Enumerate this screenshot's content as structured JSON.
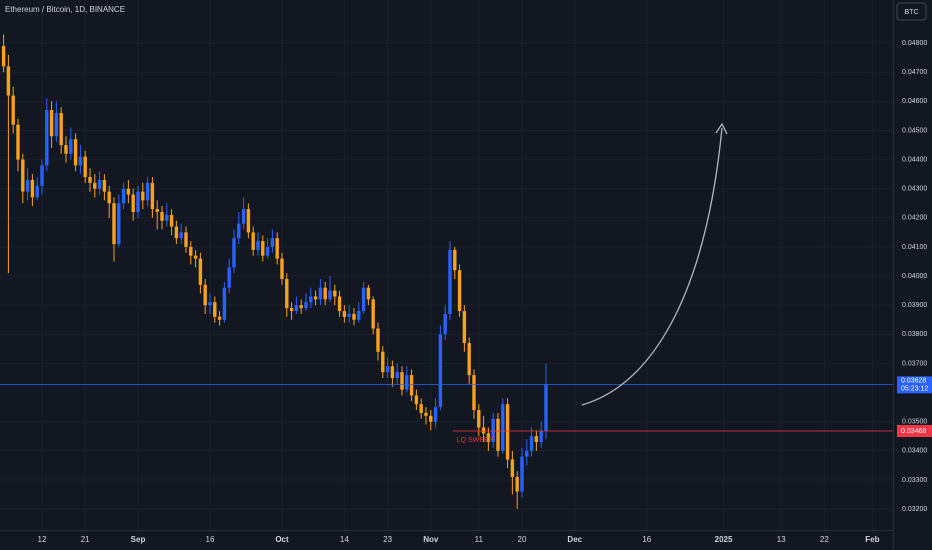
{
  "chart_data": {
    "type": "candlestick",
    "title": "Ethereum / Bitcoin, 1D, BINANCE",
    "currency_button": "BTC",
    "up_color": "#2962ff",
    "down_color": "#f7a21b",
    "ylim": [
      0.03128,
      0.04948
    ],
    "yticks": [
      {
        "value": 0.032,
        "label": "0.03200"
      },
      {
        "value": 0.033,
        "label": "0.03300"
      },
      {
        "value": 0.034,
        "label": "0.03400"
      },
      {
        "value": 0.035,
        "label": "0.03500"
      },
      {
        "value": 0.037,
        "label": "0.03700"
      },
      {
        "value": 0.038,
        "label": "0.03800"
      },
      {
        "value": 0.039,
        "label": "0.03900"
      },
      {
        "value": 0.04,
        "label": "0.04000"
      },
      {
        "value": 0.041,
        "label": "0.04100"
      },
      {
        "value": 0.042,
        "label": "0.04200"
      },
      {
        "value": 0.043,
        "label": "0.04300"
      },
      {
        "value": 0.044,
        "label": "0.04400"
      },
      {
        "value": 0.045,
        "label": "0.04500"
      },
      {
        "value": 0.046,
        "label": "0.04600"
      },
      {
        "value": 0.047,
        "label": "0.04700"
      },
      {
        "value": 0.048,
        "label": "0.04800"
      }
    ],
    "xlim": [
      -0.75,
      185.3
    ],
    "xticks": [
      {
        "value": 8,
        "label": "12"
      },
      {
        "value": 17,
        "label": "21"
      },
      {
        "value": 28,
        "label": "Sep"
      },
      {
        "value": 43,
        "label": "16"
      },
      {
        "value": 58,
        "label": "Oct"
      },
      {
        "value": 71,
        "label": "14"
      },
      {
        "value": 80,
        "label": "23"
      },
      {
        "value": 89,
        "label": "Nov"
      },
      {
        "value": 99,
        "label": "11"
      },
      {
        "value": 108,
        "label": "20"
      },
      {
        "value": 119,
        "label": "Dec"
      },
      {
        "value": 134,
        "label": "16"
      },
      {
        "value": 150,
        "label": "2025"
      },
      {
        "value": 162,
        "label": "13"
      },
      {
        "value": 171,
        "label": "22"
      },
      {
        "value": 181,
        "label": "Feb"
      }
    ],
    "last_price": 0.03628,
    "countdown": "05:23:12",
    "level_price": 0.03468,
    "annotation": "LQ SWEEP",
    "ohlc": [
      [
        0.0479,
        0.0483,
        0.047,
        0.0472
      ],
      [
        0.0472,
        0.0476,
        0.0401,
        0.0462
      ],
      [
        0.0462,
        0.0465,
        0.0449,
        0.0452
      ],
      [
        0.0452,
        0.0454,
        0.0436,
        0.044
      ],
      [
        0.044,
        0.0442,
        0.0425,
        0.0429
      ],
      [
        0.0429,
        0.0437,
        0.0426,
        0.0433
      ],
      [
        0.0433,
        0.0435,
        0.0424,
        0.0427
      ],
      [
        0.0427,
        0.0434,
        0.0426,
        0.0431
      ],
      [
        0.0431,
        0.044,
        0.0428,
        0.0438
      ],
      [
        0.0438,
        0.0461,
        0.0436,
        0.0457
      ],
      [
        0.0457,
        0.046,
        0.0444,
        0.0448
      ],
      [
        0.0448,
        0.046,
        0.0446,
        0.0456
      ],
      [
        0.0456,
        0.0458,
        0.0442,
        0.0445
      ],
      [
        0.0445,
        0.0448,
        0.0439,
        0.0442
      ],
      [
        0.0442,
        0.0451,
        0.044,
        0.0447
      ],
      [
        0.0447,
        0.0449,
        0.0436,
        0.0438
      ],
      [
        0.0438,
        0.0445,
        0.0435,
        0.0441
      ],
      [
        0.0441,
        0.0443,
        0.0432,
        0.0434
      ],
      [
        0.0434,
        0.0437,
        0.0429,
        0.0432
      ],
      [
        0.0432,
        0.0435,
        0.0427,
        0.043
      ],
      [
        0.043,
        0.0436,
        0.0428,
        0.0433
      ],
      [
        0.0433,
        0.0435,
        0.0426,
        0.0429
      ],
      [
        0.0429,
        0.0431,
        0.042,
        0.0425
      ],
      [
        0.0425,
        0.0427,
        0.0405,
        0.0411
      ],
      [
        0.0411,
        0.0428,
        0.041,
        0.0425
      ],
      [
        0.0425,
        0.0432,
        0.0423,
        0.043
      ],
      [
        0.043,
        0.0433,
        0.0425,
        0.0428
      ],
      [
        0.0428,
        0.043,
        0.0419,
        0.0422
      ],
      [
        0.0422,
        0.0431,
        0.042,
        0.0429
      ],
      [
        0.0429,
        0.0432,
        0.0423,
        0.0426
      ],
      [
        0.0426,
        0.0434,
        0.0424,
        0.0432
      ],
      [
        0.0432,
        0.0434,
        0.042,
        0.0423
      ],
      [
        0.0423,
        0.0426,
        0.0416,
        0.0422
      ],
      [
        0.0422,
        0.0424,
        0.0416,
        0.0419
      ],
      [
        0.0419,
        0.0425,
        0.0417,
        0.0421
      ],
      [
        0.0421,
        0.0423,
        0.0414,
        0.0417
      ],
      [
        0.0417,
        0.0419,
        0.0411,
        0.0413
      ],
      [
        0.0413,
        0.0418,
        0.0411,
        0.0415
      ],
      [
        0.0415,
        0.0417,
        0.0408,
        0.041
      ],
      [
        0.041,
        0.0412,
        0.0404,
        0.0407
      ],
      [
        0.0407,
        0.0409,
        0.0403,
        0.0406
      ],
      [
        0.0406,
        0.0408,
        0.0394,
        0.0397
      ],
      [
        0.0397,
        0.0399,
        0.0387,
        0.039
      ],
      [
        0.039,
        0.0394,
        0.0387,
        0.0391
      ],
      [
        0.0391,
        0.0393,
        0.0384,
        0.0386
      ],
      [
        0.0386,
        0.0388,
        0.0383,
        0.0385
      ],
      [
        0.0385,
        0.0398,
        0.0384,
        0.0396
      ],
      [
        0.0396,
        0.0406,
        0.0394,
        0.0403
      ],
      [
        0.0403,
        0.0416,
        0.0401,
        0.0413
      ],
      [
        0.0413,
        0.0422,
        0.0411,
        0.0418
      ],
      [
        0.0418,
        0.0427,
        0.0416,
        0.0423
      ],
      [
        0.0423,
        0.0425,
        0.0413,
        0.0415
      ],
      [
        0.0415,
        0.0417,
        0.0407,
        0.0409
      ],
      [
        0.0409,
        0.0415,
        0.0407,
        0.0412
      ],
      [
        0.0412,
        0.0414,
        0.0405,
        0.0407
      ],
      [
        0.0407,
        0.0413,
        0.0406,
        0.041
      ],
      [
        0.041,
        0.0416,
        0.0408,
        0.0413
      ],
      [
        0.0413,
        0.0415,
        0.0404,
        0.0406
      ],
      [
        0.0406,
        0.0408,
        0.0397,
        0.0399
      ],
      [
        0.0399,
        0.0401,
        0.0386,
        0.0389
      ],
      [
        0.0389,
        0.0391,
        0.0385,
        0.0388
      ],
      [
        0.0388,
        0.0393,
        0.0387,
        0.039
      ],
      [
        0.039,
        0.0392,
        0.0387,
        0.0389
      ],
      [
        0.0389,
        0.0394,
        0.0388,
        0.0391
      ],
      [
        0.0391,
        0.0396,
        0.0389,
        0.0393
      ],
      [
        0.0393,
        0.0395,
        0.039,
        0.0392
      ],
      [
        0.0392,
        0.0399,
        0.039,
        0.0396
      ],
      [
        0.0396,
        0.0398,
        0.039,
        0.0392
      ],
      [
        0.0392,
        0.04,
        0.0391,
        0.0395
      ],
      [
        0.0395,
        0.0397,
        0.039,
        0.0393
      ],
      [
        0.0393,
        0.0395,
        0.0386,
        0.0388
      ],
      [
        0.0388,
        0.039,
        0.0384,
        0.0386
      ],
      [
        0.0386,
        0.039,
        0.0384,
        0.0387
      ],
      [
        0.0387,
        0.0389,
        0.0383,
        0.0385
      ],
      [
        0.0385,
        0.0391,
        0.0384,
        0.0388
      ],
      [
        0.0388,
        0.0398,
        0.0387,
        0.0396
      ],
      [
        0.0396,
        0.0397,
        0.039,
        0.0392
      ],
      [
        0.0392,
        0.0393,
        0.038,
        0.0382
      ],
      [
        0.0382,
        0.0384,
        0.0371,
        0.0374
      ],
      [
        0.0374,
        0.0376,
        0.0365,
        0.0367
      ],
      [
        0.0367,
        0.0372,
        0.0365,
        0.0369
      ],
      [
        0.0369,
        0.0371,
        0.0362,
        0.0365
      ],
      [
        0.0365,
        0.037,
        0.0363,
        0.0367
      ],
      [
        0.0367,
        0.0369,
        0.0359,
        0.0361
      ],
      [
        0.0361,
        0.0369,
        0.036,
        0.0366
      ],
      [
        0.0366,
        0.0368,
        0.0357,
        0.0359
      ],
      [
        0.0359,
        0.0361,
        0.0354,
        0.0356
      ],
      [
        0.0356,
        0.0358,
        0.0351,
        0.0353
      ],
      [
        0.0353,
        0.0355,
        0.0349,
        0.0352
      ],
      [
        0.0352,
        0.0354,
        0.0347,
        0.035
      ],
      [
        0.035,
        0.0358,
        0.0348,
        0.0355
      ],
      [
        0.0355,
        0.0383,
        0.0354,
        0.038
      ],
      [
        0.038,
        0.039,
        0.0378,
        0.0387
      ],
      [
        0.0387,
        0.0412,
        0.0385,
        0.0409
      ],
      [
        0.0409,
        0.041,
        0.0399,
        0.0402
      ],
      [
        0.0402,
        0.0404,
        0.0386,
        0.0388
      ],
      [
        0.0388,
        0.039,
        0.0374,
        0.0377
      ],
      [
        0.0377,
        0.0379,
        0.0363,
        0.0366
      ],
      [
        0.0366,
        0.0368,
        0.0351,
        0.0354
      ],
      [
        0.0354,
        0.0356,
        0.0345,
        0.0348
      ],
      [
        0.0348,
        0.0352,
        0.0343,
        0.0346
      ],
      [
        0.0346,
        0.0348,
        0.034,
        0.0343
      ],
      [
        0.0343,
        0.0353,
        0.0341,
        0.0351
      ],
      [
        0.0351,
        0.0353,
        0.0338,
        0.034
      ],
      [
        0.034,
        0.0358,
        0.0339,
        0.0356
      ],
      [
        0.0356,
        0.0358,
        0.0334,
        0.0337
      ],
      [
        0.0337,
        0.034,
        0.0325,
        0.0331
      ],
      [
        0.0331,
        0.0333,
        0.032,
        0.0326
      ],
      [
        0.0326,
        0.0341,
        0.0324,
        0.0338
      ],
      [
        0.0338,
        0.0344,
        0.0335,
        0.034
      ],
      [
        0.034,
        0.0348,
        0.0338,
        0.0345
      ],
      [
        0.0345,
        0.0347,
        0.034,
        0.0343
      ],
      [
        0.0343,
        0.035,
        0.0341,
        0.03468
      ],
      [
        0.03468,
        0.037,
        0.0344,
        0.03628
      ]
    ]
  }
}
